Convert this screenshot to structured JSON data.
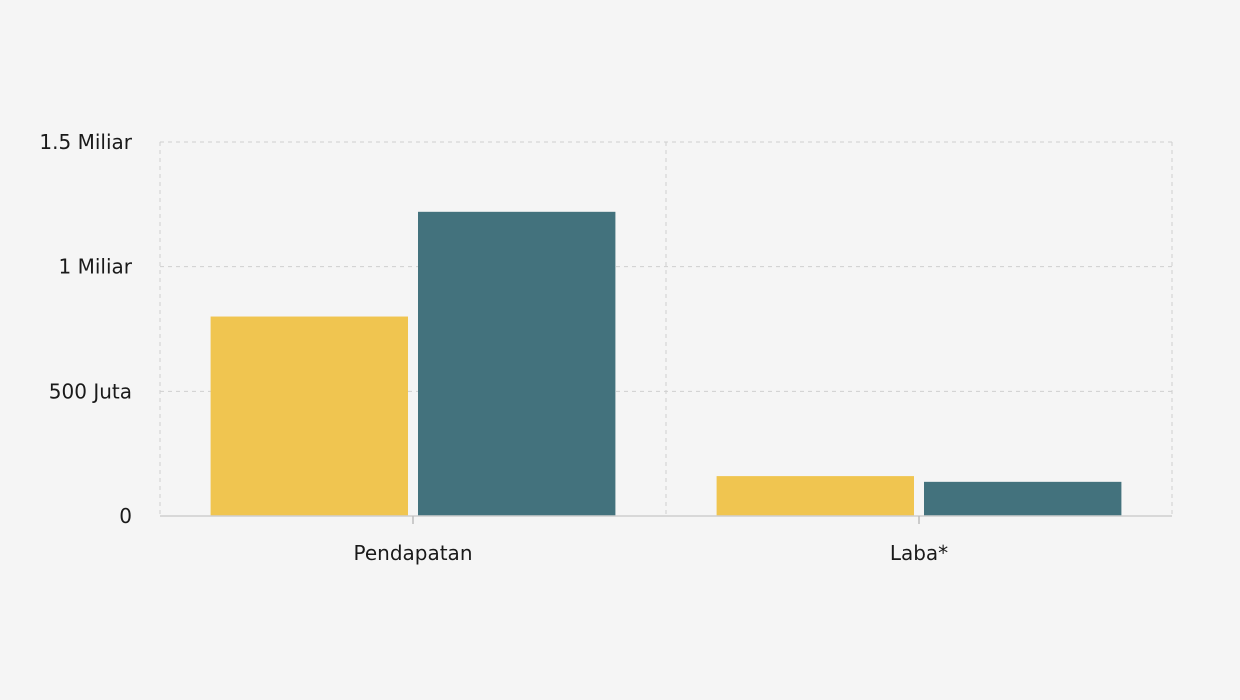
{
  "chart_data": {
    "type": "bar",
    "title": "",
    "xlabel": "",
    "ylabel": "",
    "categories": [
      "Pendapatan",
      "Laba*"
    ],
    "series": [
      {
        "values": [
          800000000,
          160000000
        ],
        "color": "#f0c550"
      },
      {
        "values": [
          1220000000,
          137000000
        ],
        "color": "#43727d"
      }
    ],
    "ylim": [
      0,
      1500000000
    ],
    "yticks": [
      {
        "value": 0,
        "label": "0"
      },
      {
        "value": 500000000,
        "label": "500 Juta"
      },
      {
        "value": 1000000000,
        "label": "1 Miliar"
      },
      {
        "value": 1500000000,
        "label": "1.5 Miliar"
      }
    ],
    "grid": true,
    "legend": "none"
  }
}
